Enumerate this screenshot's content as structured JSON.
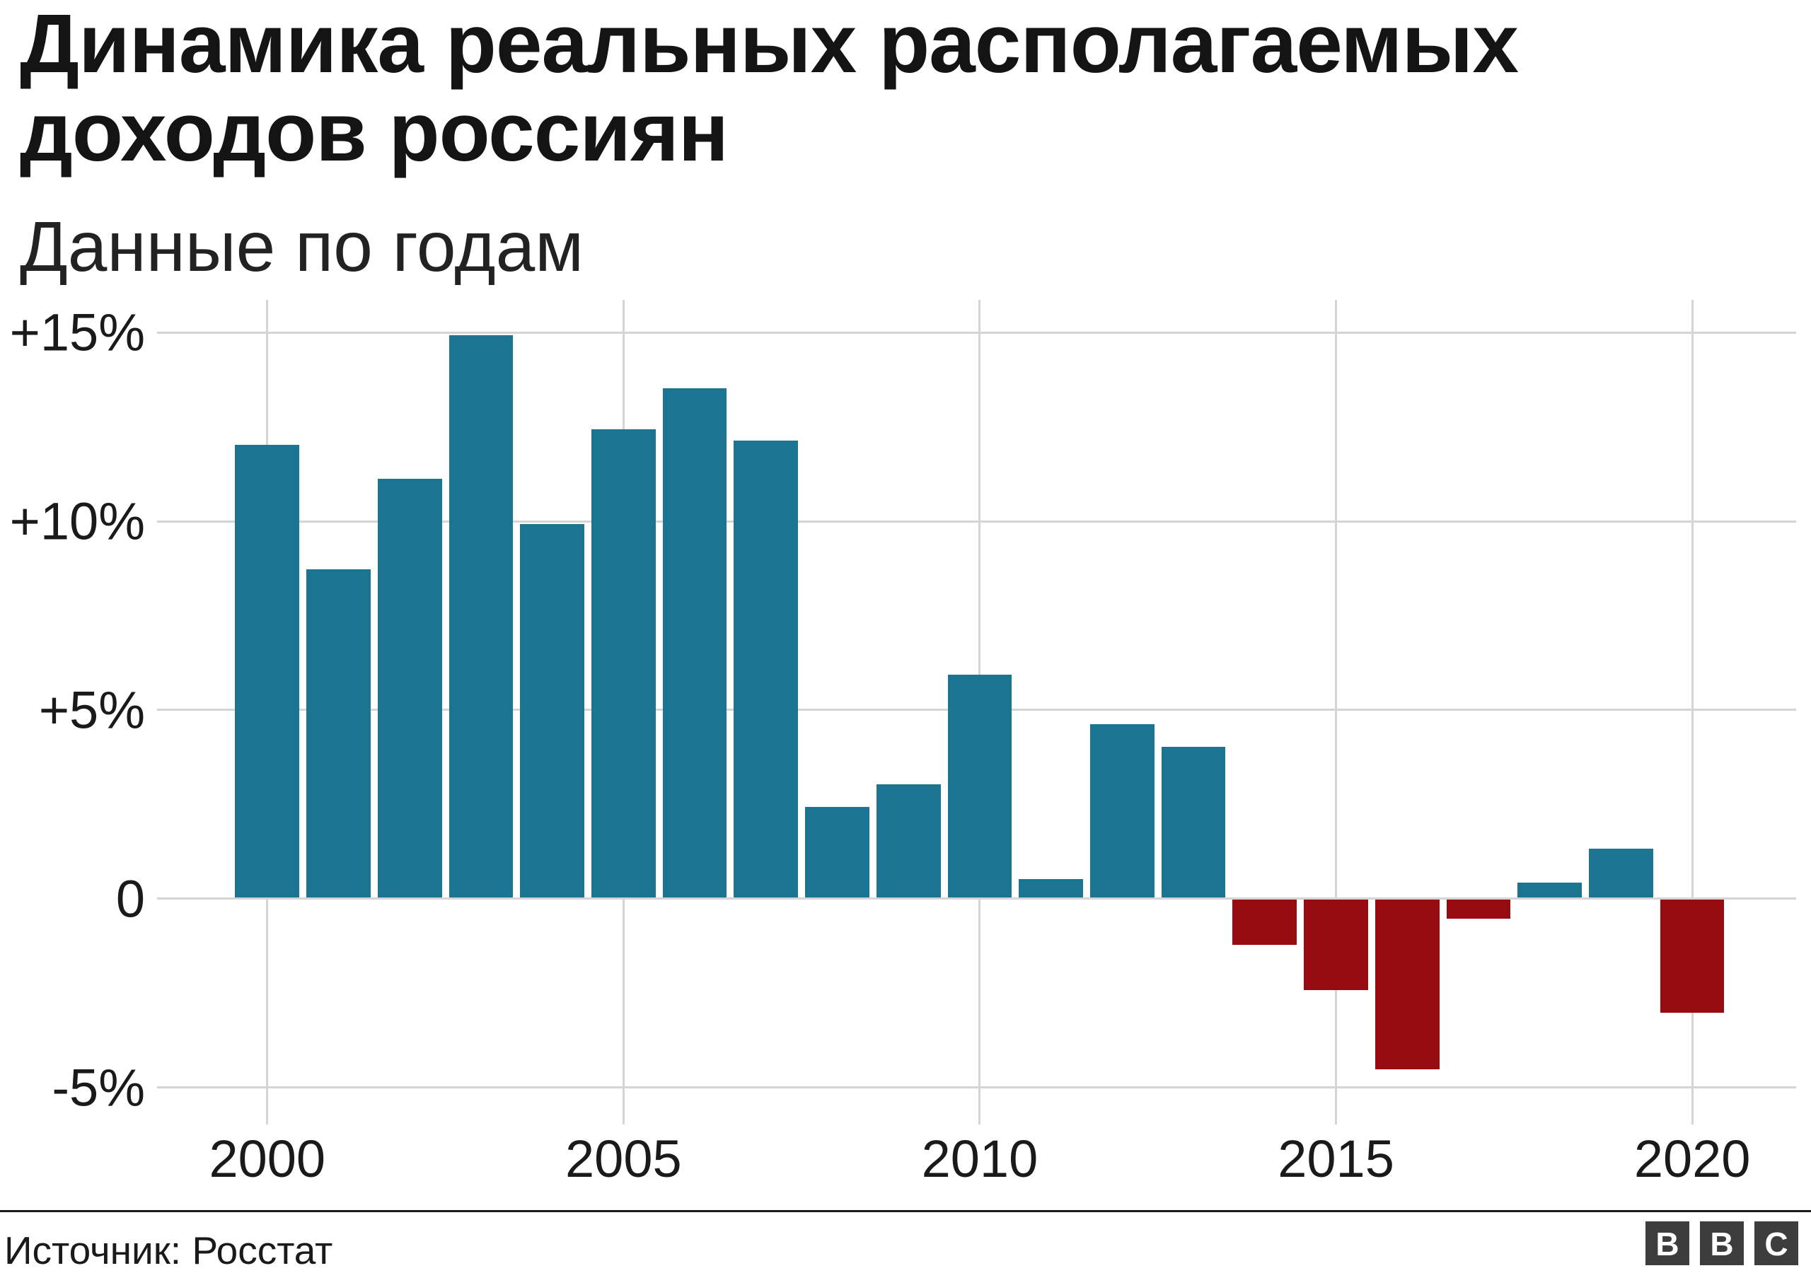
{
  "title_lines": [
    "Динамика реальных располагаемых",
    "доходов россиян"
  ],
  "subtitle": "Данные по годам",
  "source": "Источник: Росстат",
  "logo": {
    "letters": [
      "B",
      "B",
      "C"
    ]
  },
  "colors": {
    "positive_bar": "#1A7492",
    "negative_bar": "#970C10",
    "gridline": "#D5D5D5",
    "divider": "#1A1A1A",
    "logo_bg": "#3D3D3D",
    "text": "#1A1A1A"
  },
  "y_axis": {
    "tick_labels": [
      "+15%",
      "+10%",
      "+5%",
      "0",
      "-5%"
    ],
    "tick_values": [
      15,
      10,
      5,
      0,
      -5
    ]
  },
  "x_axis": {
    "tick_labels": [
      "2000",
      "2005",
      "2010",
      "2015",
      "2020"
    ],
    "tick_years": [
      2000,
      2005,
      2010,
      2015,
      2020
    ]
  },
  "chart_data": {
    "type": "bar",
    "title": "Динамика реальных располагаемых доходов россиян",
    "subtitle": "Данные по годам",
    "source": "Источник: Росстат",
    "xlabel": "",
    "ylabel": "",
    "ylim": [
      -5,
      15
    ],
    "grid": true,
    "x": [
      2000,
      2001,
      2002,
      2003,
      2004,
      2005,
      2006,
      2007,
      2008,
      2009,
      2010,
      2011,
      2012,
      2013,
      2014,
      2015,
      2016,
      2017,
      2018,
      2019,
      2020
    ],
    "values": [
      12.0,
      8.7,
      11.1,
      14.9,
      9.9,
      12.4,
      13.5,
      12.1,
      2.4,
      3.0,
      5.9,
      0.5,
      4.6,
      4.0,
      -1.2,
      -2.4,
      -4.5,
      -0.5,
      0.4,
      1.3,
      -3.0
    ],
    "units": "%"
  }
}
